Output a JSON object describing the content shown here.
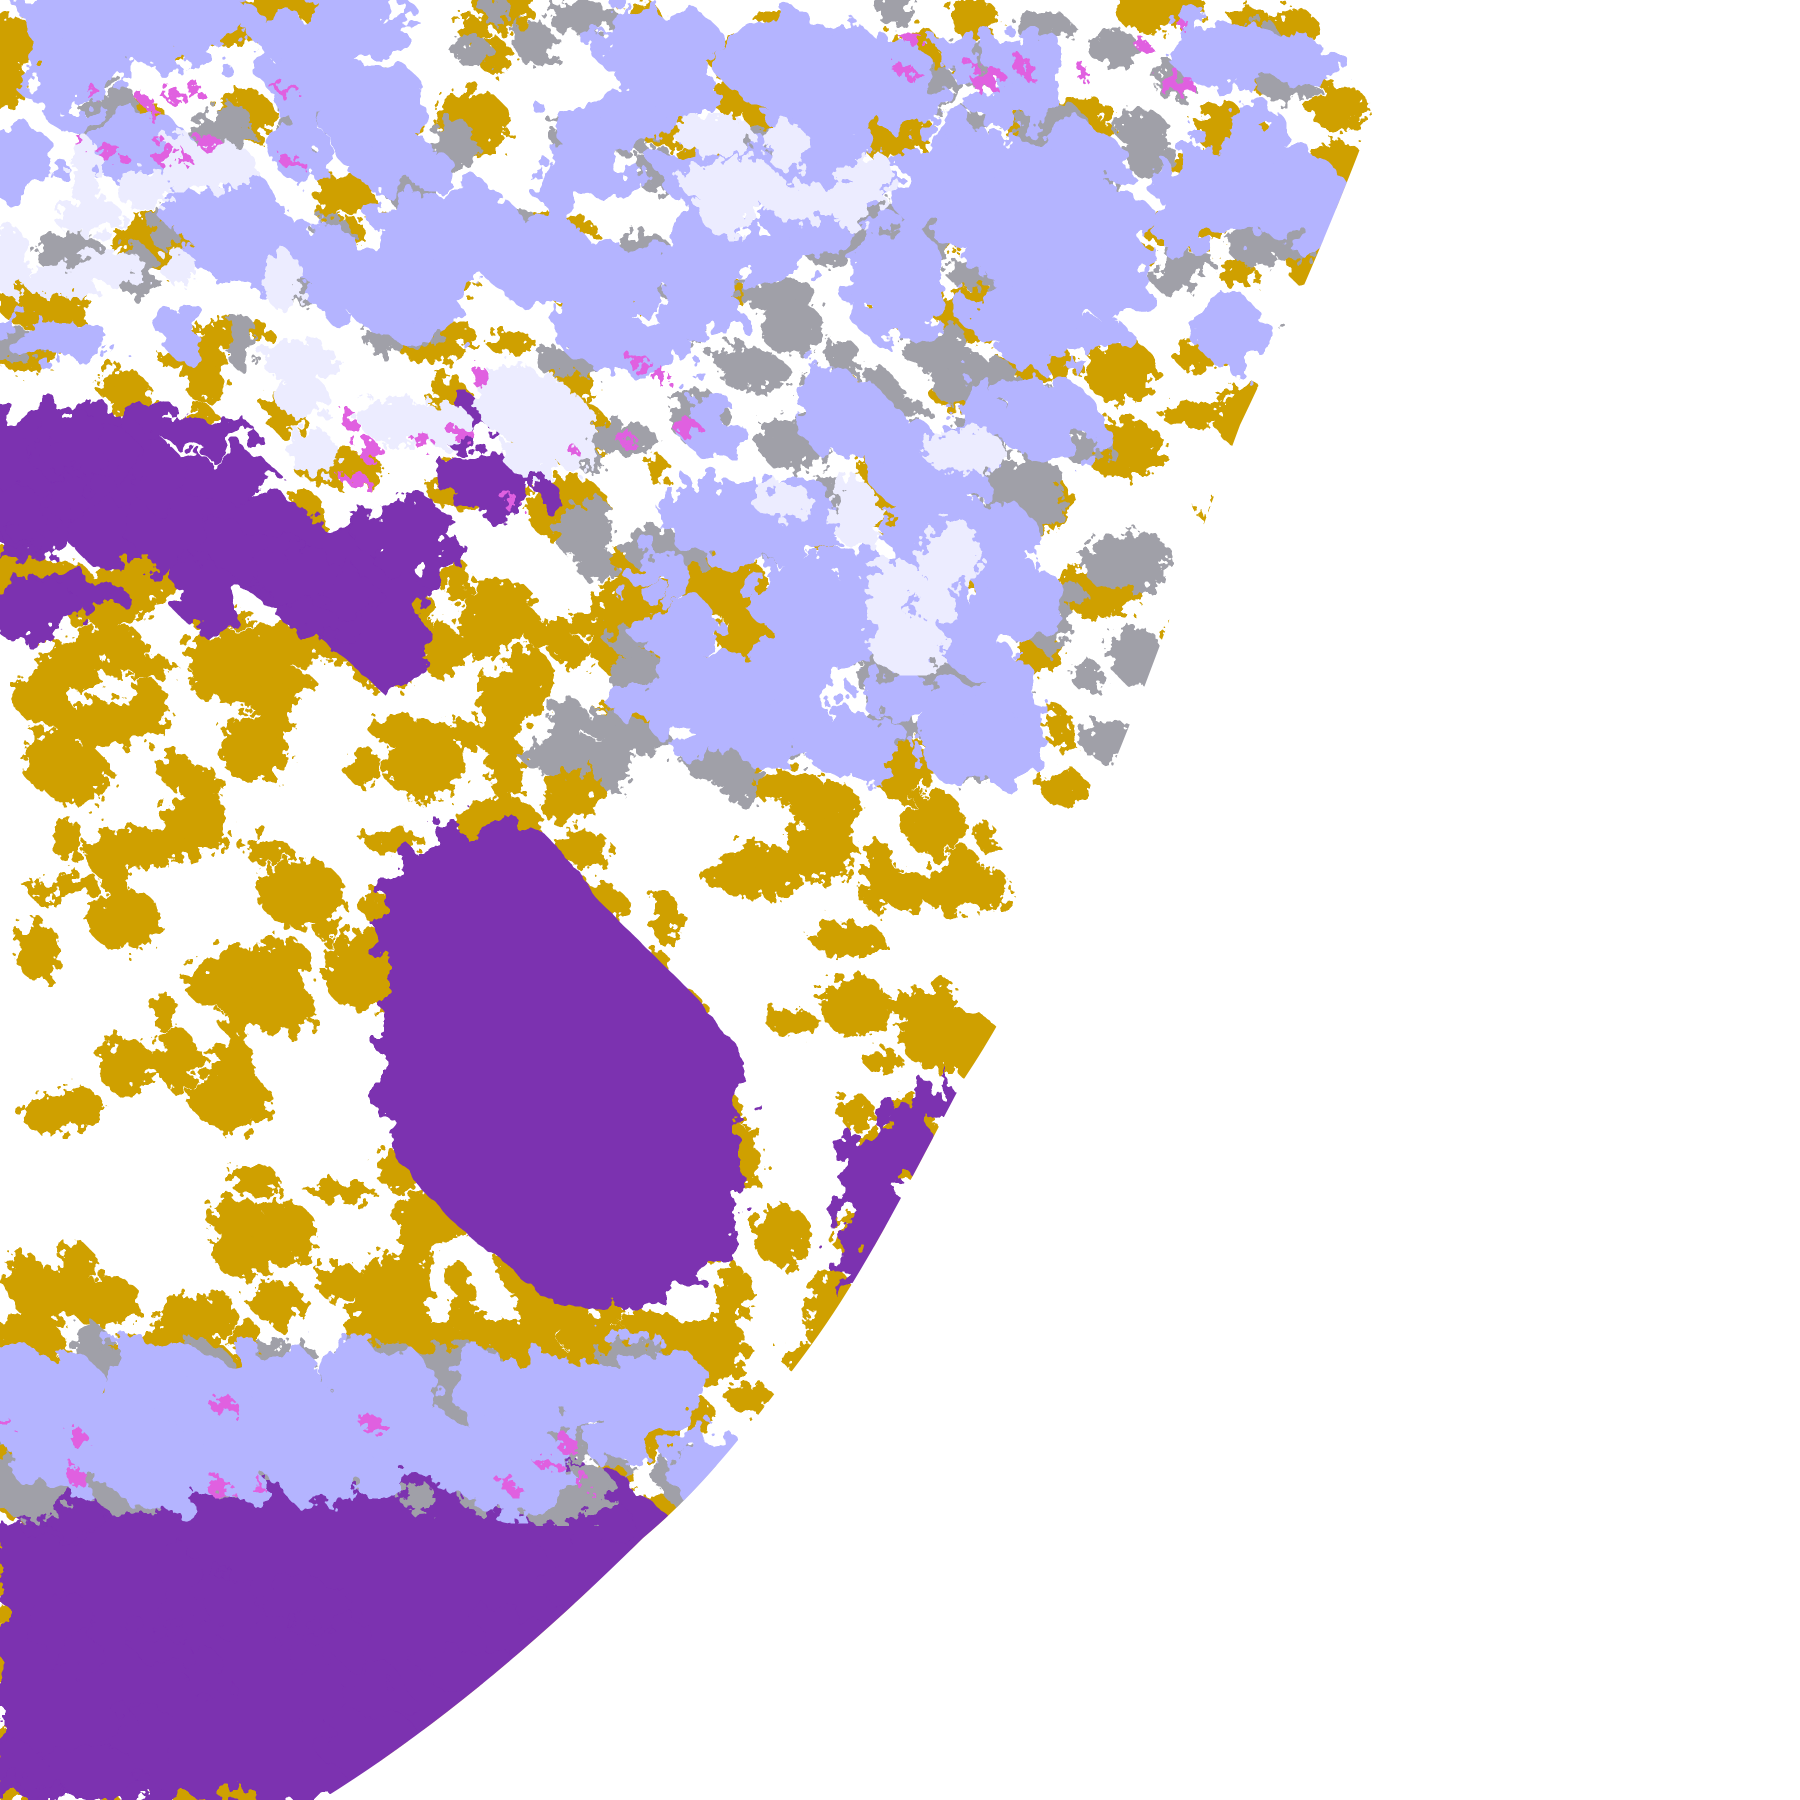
{
  "palette": {
    "background": "#ffffff",
    "clear_sky": "#ffffff",
    "low_cloud": "#cfa000",
    "ocean_clear": "#7b30b0",
    "mid_cloud": "#a0a0a8",
    "high_cloud": "#b4b4ff",
    "deep_cloud": "#ececff",
    "overshoot": "#e060e0"
  }
}
